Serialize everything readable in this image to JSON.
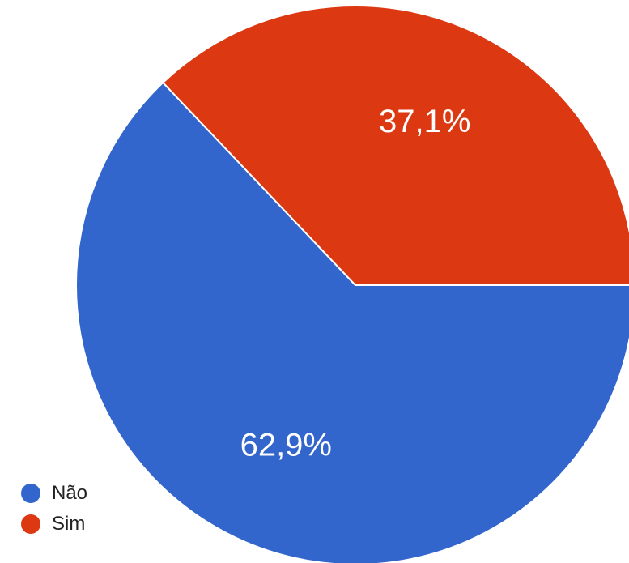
{
  "chart_data": {
    "type": "pie",
    "slices": [
      {
        "name": "Não",
        "value": 62.9,
        "label": "62,9%",
        "color": "#3366cc"
      },
      {
        "name": "Sim",
        "value": 37.1,
        "label": "37,1%",
        "color": "#dc3912"
      }
    ],
    "title": "",
    "legend_position": "bottom-left"
  }
}
